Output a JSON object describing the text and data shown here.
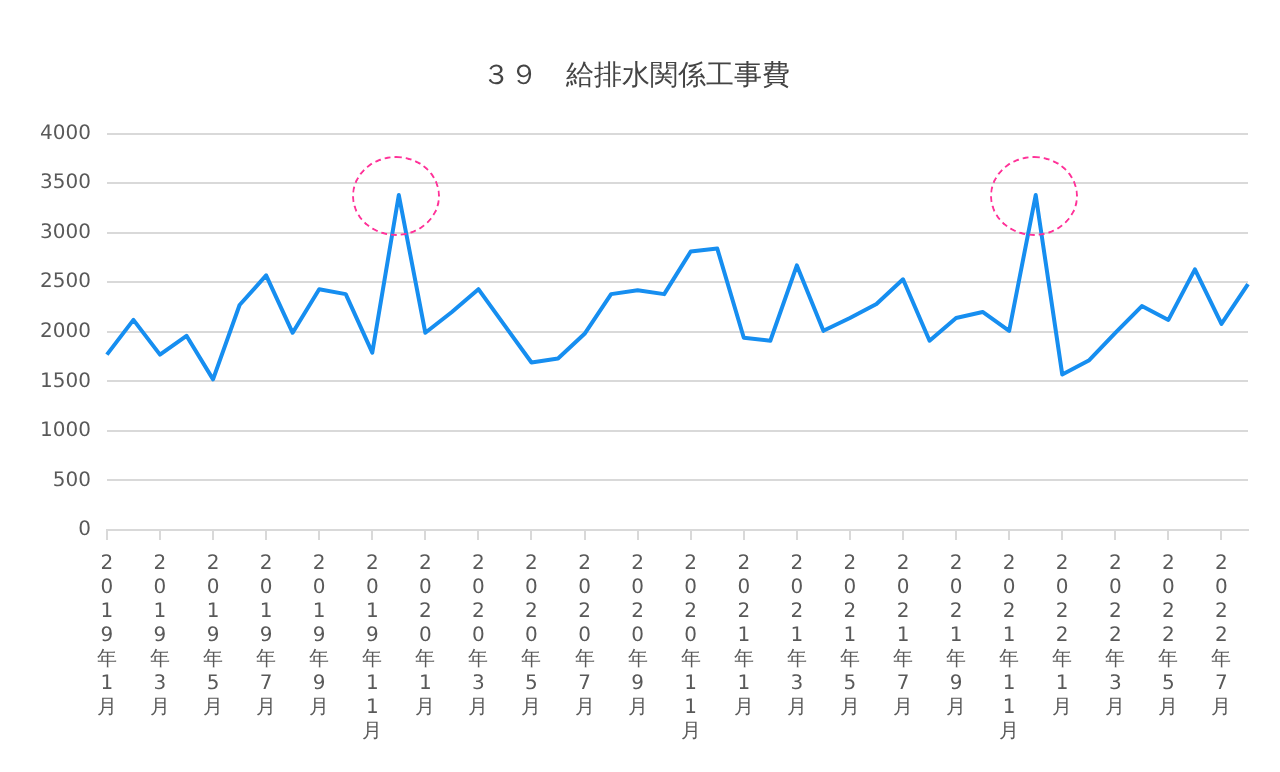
{
  "chart_data": {
    "type": "line",
    "title": "３９　給排水関係工事費",
    "categories": [
      "2019年1月",
      null,
      "2019年3月",
      null,
      "2019年5月",
      null,
      "2019年7月",
      null,
      "2019年9月",
      null,
      "2019年11月",
      null,
      "2020年1月",
      null,
      "2020年3月",
      null,
      "2020年5月",
      null,
      "2020年7月",
      null,
      "2020年9月",
      null,
      "2020年11月",
      null,
      "2021年1月",
      null,
      "2021年3月",
      null,
      "2021年5月",
      null,
      "2021年7月",
      null,
      "2021年9月",
      null,
      "2021年11月",
      null,
      "2022年1月",
      null,
      "2022年3月",
      null,
      "2022年5月",
      null,
      "2022年7月",
      null
    ],
    "series": [
      {
        "color": "#168ef0",
        "values": [
          1770,
          2120,
          1770,
          1960,
          1520,
          2270,
          2570,
          1990,
          2430,
          2380,
          1790,
          3380,
          1990,
          2200,
          2430,
          2060,
          1690,
          1730,
          1980,
          2380,
          2420,
          2380,
          2810,
          2840,
          1940,
          1910,
          2670,
          2010,
          2140,
          2280,
          2530,
          1910,
          2140,
          2200,
          2010,
          3380,
          1570,
          1710,
          1990,
          2260,
          2120,
          2630,
          2080,
          2480
        ]
      }
    ],
    "ylim": [
      0,
      4000
    ],
    "yticks": [
      0,
      500,
      1000,
      1500,
      2000,
      2500,
      3000,
      3500,
      4000
    ],
    "grid": "y",
    "legend": false,
    "marker": "none",
    "line_style": "solid"
  }
}
